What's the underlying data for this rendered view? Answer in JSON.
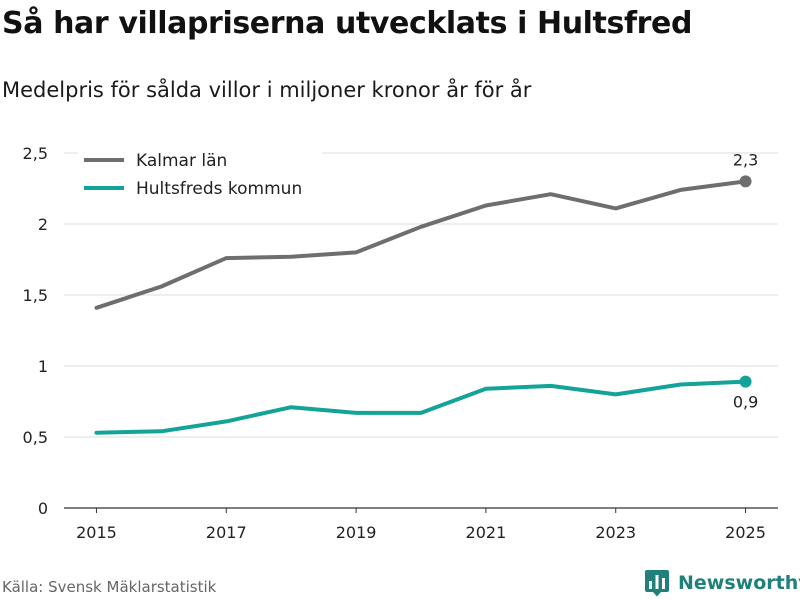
{
  "header": {
    "title": "Så har villapriserna utvecklats i Hultsfred",
    "subtitle": "Medelpris för sålda villor i miljoner kronor år för år"
  },
  "footer": {
    "source": "Källa: Svensk Mäklarstatistik",
    "brand": "Newsworthy",
    "brand_icon": "bar-chart-logo-icon",
    "brand_color": "#20807a"
  },
  "chart_data": {
    "type": "line",
    "title": "Så har villapriserna utvecklats i Hultsfred",
    "subtitle": "Medelpris för sålda villor i miljoner kronor år för år",
    "xlabel": "",
    "ylabel": "",
    "x": [
      2015,
      2016,
      2017,
      2018,
      2019,
      2020,
      2021,
      2022,
      2023,
      2024,
      2025
    ],
    "xticks": [
      2015,
      2017,
      2019,
      2021,
      2023,
      2025
    ],
    "yticks": [
      0,
      0.5,
      1,
      1.5,
      2,
      2.5
    ],
    "ytick_labels": [
      "0",
      "0,5",
      "1",
      "1,5",
      "2",
      "2,5"
    ],
    "ylim": [
      0,
      2.5
    ],
    "xlim": [
      2014.5,
      2025.5
    ],
    "grid": true,
    "legend_position": "top-left",
    "series": [
      {
        "name": "Kalmar län",
        "color": "#6e6e70",
        "values": [
          1.41,
          1.56,
          1.76,
          1.77,
          1.8,
          1.98,
          2.13,
          2.21,
          2.11,
          2.24,
          2.3
        ],
        "end_label": "2,3",
        "end_label_placement": "above"
      },
      {
        "name": "Hultsfreds kommun",
        "color": "#14a399",
        "values": [
          0.53,
          0.54,
          0.61,
          0.71,
          0.67,
          0.67,
          0.84,
          0.86,
          0.8,
          0.87,
          0.89
        ],
        "end_label": "0,9",
        "end_label_placement": "below"
      }
    ]
  }
}
